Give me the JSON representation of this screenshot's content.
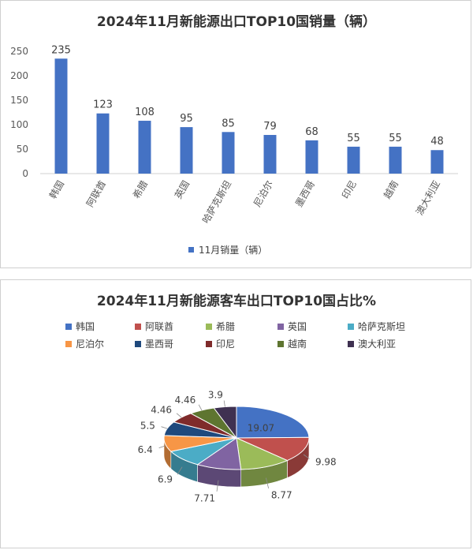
{
  "bar_chart": {
    "title": "2024年11月新能源出口TOP10国销量（辆）",
    "chart_data": {
      "type": "bar",
      "title": "2024年11月新能源出口TOP10国销量（辆）",
      "categories": [
        "韩国",
        "阿联酋",
        "希腊",
        "英国",
        "哈萨克斯坦",
        "尼泊尔",
        "墨西哥",
        "印尼",
        "越南",
        "澳大利亚"
      ],
      "series": [
        {
          "name": "11月销量（辆）",
          "values": [
            235,
            123,
            108,
            95,
            85,
            79,
            68,
            55,
            55,
            48
          ]
        }
      ],
      "yticks": [
        "0",
        "50",
        "100",
        "150",
        "200",
        "250"
      ],
      "ylim": [
        0,
        250
      ],
      "grid": false,
      "legend": "bottom",
      "color": "#4472C4"
    }
  },
  "pie_chart": {
    "title": "2024年11月新能源客车出口TOP10国占比%",
    "chart_data": {
      "type": "pie",
      "title": "2024年11月新能源客车出口TOP10国占比%",
      "categories": [
        "韩国",
        "阿联酋",
        "希腊",
        "英国",
        "哈萨克斯坦",
        "尼泊尔",
        "墨西哥",
        "印尼",
        "越南",
        "澳大利亚"
      ],
      "values": [
        19.07,
        9.98,
        8.77,
        7.71,
        6.9,
        6.4,
        5.5,
        4.46,
        4.46,
        3.9
      ],
      "labels": [
        "19.07",
        "9.98",
        "8.77",
        "7.71",
        "6.9",
        "6.4",
        "5.5",
        "4.46",
        "4.46",
        "3.9"
      ],
      "colors": [
        "#4472C4",
        "#C0504D",
        "#9BBB59",
        "#8064A2",
        "#4BACC6",
        "#F79646",
        "#1F497D",
        "#7F2B2B",
        "#5E7530",
        "#3F3151"
      ],
      "legend": "top",
      "style": "3d"
    }
  }
}
